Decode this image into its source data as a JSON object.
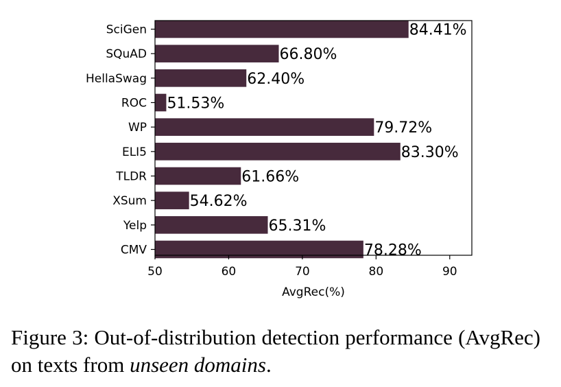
{
  "chart_data": {
    "type": "bar",
    "orientation": "horizontal",
    "categories": [
      "SciGen",
      "SQuAD",
      "HellaSwag",
      "ROC",
      "WP",
      "ELI5",
      "TLDR",
      "XSum",
      "Yelp",
      "CMV"
    ],
    "values": [
      84.41,
      66.8,
      62.4,
      51.53,
      79.72,
      83.3,
      61.66,
      54.62,
      65.31,
      78.28
    ],
    "data_labels": [
      "84.41%",
      "66.80%",
      "62.40%",
      "51.53%",
      "79.72%",
      "83.30%",
      "61.66%",
      "54.62%",
      "65.31%",
      "78.28%"
    ],
    "xlabel": "AvgRec(%)",
    "ylabel": "",
    "xlim": [
      50,
      93
    ],
    "x_ticks": [
      50,
      60,
      70,
      80,
      90
    ],
    "grid": false,
    "bar_color": "#472a3c"
  },
  "caption": {
    "main": "Figure 3:  Out-of-distribution detection performance (AvgRec) on texts from ",
    "emphasis": "unseen domains",
    "end": "."
  }
}
